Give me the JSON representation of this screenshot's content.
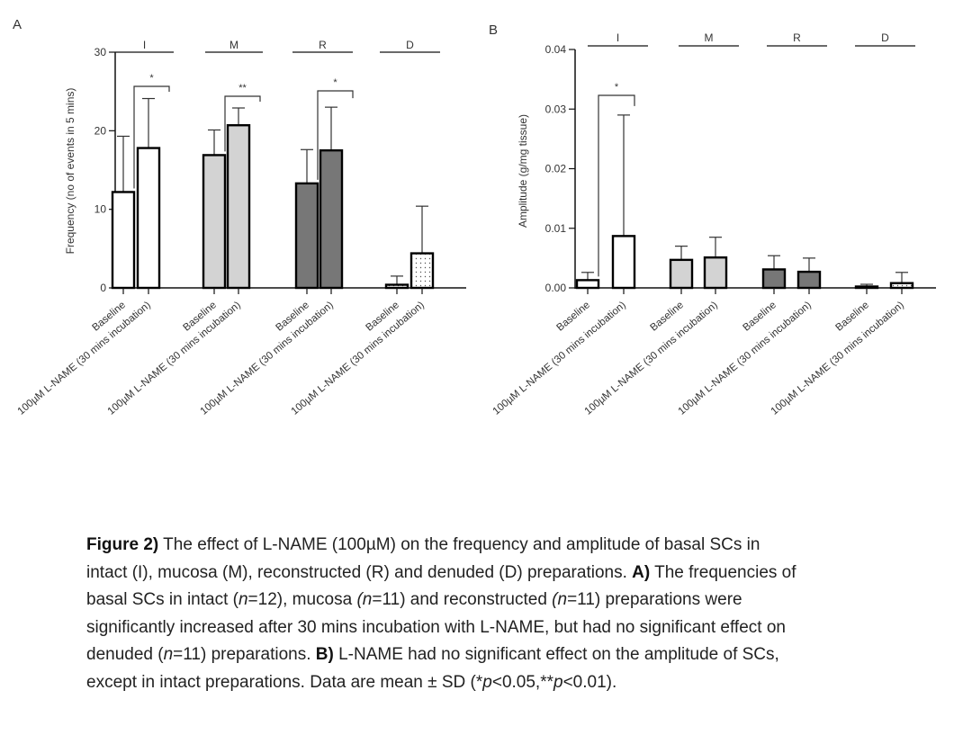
{
  "chart_data": [
    {
      "panel": "A",
      "type": "bar",
      "ylabel": "Frequency (no of events in 5 mins)",
      "ylim": [
        0,
        30
      ],
      "yticks": [
        "0",
        "10",
        "20",
        "30"
      ],
      "groups": [
        "I",
        "M",
        "R",
        "D"
      ],
      "categories": [
        "Baseline",
        "100µM L-NAME (30 mins incubation)"
      ],
      "fills": [
        "#ffffff",
        "#d3d3d3",
        "#777777",
        "dotted"
      ],
      "values": [
        [
          12.2,
          17.8
        ],
        [
          16.9,
          20.7
        ],
        [
          13.3,
          17.5
        ],
        [
          0.4,
          4.4
        ]
      ],
      "sd": [
        [
          7.1,
          6.3
        ],
        [
          3.2,
          2.2
        ],
        [
          4.3,
          5.5
        ],
        [
          1.1,
          6.0
        ]
      ],
      "significance": [
        {
          "group": 0,
          "label": "*"
        },
        {
          "group": 1,
          "label": "**"
        },
        {
          "group": 2,
          "label": "*"
        }
      ]
    },
    {
      "panel": "B",
      "type": "bar",
      "ylabel": "Amplitude (g/mg tissue)",
      "ylim": [
        0,
        0.04
      ],
      "yticks": [
        "0.00",
        "0.01",
        "0.02",
        "0.03",
        "0.04"
      ],
      "groups": [
        "I",
        "M",
        "R",
        "D"
      ],
      "categories": [
        "Baseline",
        "100µM L-NAME (30 mins incubation)"
      ],
      "fills": [
        "#ffffff",
        "#d3d3d3",
        "#777777",
        "dotted"
      ],
      "values": [
        [
          0.0013,
          0.0087
        ],
        [
          0.0047,
          0.0051
        ],
        [
          0.0031,
          0.0027
        ],
        [
          0.0,
          0.0008
        ]
      ],
      "sd": [
        [
          0.0013,
          0.0203
        ],
        [
          0.0023,
          0.0034
        ],
        [
          0.0023,
          0.0023
        ],
        [
          0.0006,
          0.0018
        ]
      ],
      "significance": [
        {
          "group": 0,
          "label": "*"
        }
      ]
    }
  ],
  "caption": {
    "lines": [
      [
        {
          "b": true,
          "t": "Figure 2)"
        },
        {
          "t": " The effect of L-NAME (100µM) on the frequency and amplitude of basal SCs in"
        }
      ],
      [
        {
          "t": "intact (I), mucosa (M), reconstructed (R) and denuded (D) preparations.  "
        },
        {
          "b": true,
          "t": "A)"
        },
        {
          "t": " The frequencies of"
        }
      ],
      [
        {
          "t": "basal SCs in intact ("
        },
        {
          "i": true,
          "t": "n"
        },
        {
          "t": "=12), mucosa "
        },
        {
          "i": true,
          "t": "(n"
        },
        {
          "t": "=11) and reconstructed "
        },
        {
          "i": true,
          "t": "(n"
        },
        {
          "t": "=11) preparations were"
        }
      ],
      [
        {
          "t": "significantly increased after 30 mins incubation with L-NAME, but had no significant effect on"
        }
      ],
      [
        {
          "t": "denuded ("
        },
        {
          "i": true,
          "t": "n"
        },
        {
          "t": "=11) preparations. "
        },
        {
          "b": true,
          "t": "B)"
        },
        {
          "t": " L-NAME had no significant effect on the amplitude of SCs,"
        }
      ],
      [
        {
          "t": "except in intact preparations. Data are mean ± SD (*"
        },
        {
          "i": true,
          "t": "p"
        },
        {
          "t": "<0.05,**"
        },
        {
          "i": true,
          "t": "p"
        },
        {
          "t": "<0.01)."
        }
      ]
    ]
  }
}
